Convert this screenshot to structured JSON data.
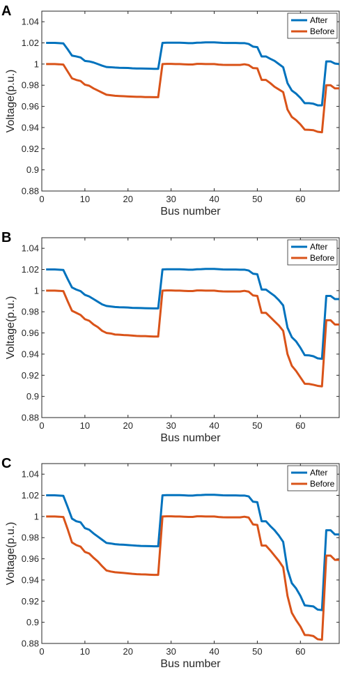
{
  "chart_data": [
    {
      "type": "line",
      "panel_label": "A",
      "xlabel": "Bus number",
      "ylabel": "Voltage(p.u.)",
      "xlim": [
        0,
        69
      ],
      "ylim": [
        0.88,
        1.05
      ],
      "xticks": [
        0,
        10,
        20,
        30,
        40,
        50,
        60
      ],
      "yticks": [
        0.88,
        0.9,
        0.92,
        0.94,
        0.96,
        0.98,
        1,
        1.02,
        1.04
      ],
      "legend_position": "top-right",
      "series": [
        {
          "name": "After",
          "color": "#0072BD",
          "x": [
            1,
            2,
            3,
            4,
            5,
            6,
            7,
            8,
            9,
            10,
            11,
            12,
            13,
            14,
            15,
            16,
            17,
            18,
            19,
            20,
            21,
            22,
            23,
            24,
            25,
            26,
            27,
            28,
            29,
            30,
            31,
            32,
            33,
            34,
            35,
            36,
            37,
            38,
            39,
            40,
            41,
            42,
            43,
            44,
            45,
            46,
            47,
            48,
            49,
            50,
            51,
            52,
            53,
            54,
            55,
            56,
            57,
            58,
            59,
            60,
            61,
            62,
            63,
            64,
            65,
            66,
            67,
            68,
            69
          ],
          "y": [
            1.02,
            1.02,
            1.02,
            1.0198,
            1.0195,
            1.014,
            1.008,
            1.0072,
            1.0062,
            1.003,
            1.0025,
            1.0015,
            1.0,
            0.9985,
            0.9972,
            0.997,
            0.9967,
            0.9965,
            0.9964,
            0.9963,
            0.996,
            0.9958,
            0.9958,
            0.9957,
            0.9956,
            0.9955,
            0.9955,
            1.02,
            1.0202,
            1.0202,
            1.0202,
            1.0202,
            1.02,
            1.0198,
            1.0198,
            1.0202,
            1.0203,
            1.0205,
            1.0205,
            1.0205,
            1.0203,
            1.02,
            1.0199,
            1.0199,
            1.0199,
            1.0198,
            1.0198,
            1.019,
            1.0165,
            1.016,
            1.0072,
            1.0072,
            1.005,
            1.003,
            1.0,
            0.997,
            0.982,
            0.975,
            0.972,
            0.968,
            0.963,
            0.963,
            0.9625,
            0.961,
            0.961,
            1.0025,
            1.0025,
            1.0005,
            1.0
          ]
        },
        {
          "name": "Before",
          "color": "#D95319",
          "x": [
            1,
            2,
            3,
            4,
            5,
            6,
            7,
            8,
            9,
            10,
            11,
            12,
            13,
            14,
            15,
            16,
            17,
            18,
            19,
            20,
            21,
            22,
            23,
            24,
            25,
            26,
            27,
            28,
            29,
            30,
            31,
            32,
            33,
            34,
            35,
            36,
            37,
            38,
            39,
            40,
            41,
            42,
            43,
            44,
            45,
            46,
            47,
            48,
            49,
            50,
            51,
            52,
            53,
            54,
            55,
            56,
            57,
            58,
            59,
            60,
            61,
            62,
            63,
            64,
            65,
            66,
            67,
            68,
            69
          ],
          "y": [
            1.0,
            1.0,
            1.0,
            0.9998,
            0.9995,
            0.993,
            0.9865,
            0.985,
            0.984,
            0.9805,
            0.9795,
            0.977,
            0.975,
            0.973,
            0.971,
            0.9705,
            0.97,
            0.9698,
            0.9696,
            0.9694,
            0.9692,
            0.969,
            0.969,
            0.9688,
            0.9688,
            0.9687,
            0.9687,
            1.0,
            1.0002,
            1.0002,
            1.0,
            1.0,
            0.9998,
            0.9996,
            0.9996,
            1.0002,
            1.0002,
            1.0,
            1.0,
            1.0,
            0.9995,
            0.9993,
            0.9992,
            0.9992,
            0.9992,
            0.9992,
            0.9998,
            0.999,
            0.9962,
            0.996,
            0.985,
            0.985,
            0.982,
            0.9785,
            0.976,
            0.9735,
            0.957,
            0.95,
            0.947,
            0.943,
            0.938,
            0.9378,
            0.9375,
            0.936,
            0.9355,
            0.98,
            0.98,
            0.977,
            0.977
          ]
        }
      ]
    },
    {
      "type": "line",
      "panel_label": "B",
      "xlabel": "Bus number",
      "ylabel": "Voltage(p.u.)",
      "xlim": [
        0,
        69
      ],
      "ylim": [
        0.88,
        1.05
      ],
      "xticks": [
        0,
        10,
        20,
        30,
        40,
        50,
        60
      ],
      "yticks": [
        0.88,
        0.9,
        0.92,
        0.94,
        0.96,
        0.98,
        1,
        1.02,
        1.04
      ],
      "legend_position": "top-right",
      "series": [
        {
          "name": "After",
          "color": "#0072BD",
          "x": [
            1,
            2,
            3,
            4,
            5,
            6,
            7,
            8,
            9,
            10,
            11,
            12,
            13,
            14,
            15,
            16,
            17,
            18,
            19,
            20,
            21,
            22,
            23,
            24,
            25,
            26,
            27,
            28,
            29,
            30,
            31,
            32,
            33,
            34,
            35,
            36,
            37,
            38,
            39,
            40,
            41,
            42,
            43,
            44,
            45,
            46,
            47,
            48,
            49,
            50,
            51,
            52,
            53,
            54,
            55,
            56,
            57,
            58,
            59,
            60,
            61,
            62,
            63,
            64,
            65,
            66,
            67,
            68,
            69
          ],
          "y": [
            1.02,
            1.02,
            1.02,
            1.0198,
            1.0195,
            1.011,
            1.003,
            1.001,
            0.9995,
            0.996,
            0.9945,
            0.992,
            0.9895,
            0.987,
            0.9855,
            0.985,
            0.9845,
            0.9843,
            0.9842,
            0.984,
            0.9837,
            0.9836,
            0.9835,
            0.9834,
            0.9833,
            0.9832,
            0.9832,
            1.02,
            1.0202,
            1.0202,
            1.0202,
            1.0202,
            1.02,
            1.0198,
            1.0198,
            1.0202,
            1.0203,
            1.0205,
            1.0205,
            1.0205,
            1.0203,
            1.02,
            1.0199,
            1.0199,
            1.0199,
            1.0198,
            1.0198,
            1.019,
            1.016,
            1.0155,
            1.001,
            1.001,
            0.998,
            0.995,
            0.991,
            0.986,
            0.965,
            0.956,
            0.952,
            0.946,
            0.939,
            0.9388,
            0.938,
            0.936,
            0.9355,
            0.995,
            0.995,
            0.992,
            0.992
          ]
        },
        {
          "name": "Before",
          "color": "#D95319",
          "x": [
            1,
            2,
            3,
            4,
            5,
            6,
            7,
            8,
            9,
            10,
            11,
            12,
            13,
            14,
            15,
            16,
            17,
            18,
            19,
            20,
            21,
            22,
            23,
            24,
            25,
            26,
            27,
            28,
            29,
            30,
            31,
            32,
            33,
            34,
            35,
            36,
            37,
            38,
            39,
            40,
            41,
            42,
            43,
            44,
            45,
            46,
            47,
            48,
            49,
            50,
            51,
            52,
            53,
            54,
            55,
            56,
            57,
            58,
            59,
            60,
            61,
            62,
            63,
            64,
            65,
            66,
            67,
            68,
            69
          ],
          "y": [
            1.0,
            1.0,
            1.0,
            0.9998,
            0.9995,
            0.99,
            0.981,
            0.979,
            0.977,
            0.973,
            0.9715,
            0.968,
            0.9655,
            0.962,
            0.96,
            0.9595,
            0.9585,
            0.9583,
            0.958,
            0.9578,
            0.9575,
            0.9572,
            0.957,
            0.957,
            0.9568,
            0.9566,
            0.9566,
            1.0,
            1.0002,
            1.0002,
            1.0,
            1.0,
            0.9998,
            0.9996,
            0.9996,
            1.0002,
            1.0002,
            1.0,
            1.0,
            1.0,
            0.9995,
            0.9993,
            0.9992,
            0.9992,
            0.9992,
            0.9992,
            0.9998,
            0.999,
            0.9955,
            0.995,
            0.979,
            0.979,
            0.975,
            0.971,
            0.967,
            0.962,
            0.94,
            0.929,
            0.924,
            0.918,
            0.912,
            0.9118,
            0.911,
            0.91,
            0.9095,
            0.972,
            0.972,
            0.968,
            0.968
          ]
        }
      ]
    },
    {
      "type": "line",
      "panel_label": "C",
      "xlabel": "Bus number",
      "ylabel": "Voltage(p.u.)",
      "xlim": [
        0,
        69
      ],
      "ylim": [
        0.88,
        1.05
      ],
      "xticks": [
        0,
        10,
        20,
        30,
        40,
        50,
        60
      ],
      "yticks": [
        0.88,
        0.9,
        0.92,
        0.94,
        0.96,
        0.98,
        1,
        1.02,
        1.04
      ],
      "legend_position": "top-right",
      "series": [
        {
          "name": "After",
          "color": "#0072BD",
          "x": [
            1,
            2,
            3,
            4,
            5,
            6,
            7,
            8,
            9,
            10,
            11,
            12,
            13,
            14,
            15,
            16,
            17,
            18,
            19,
            20,
            21,
            22,
            23,
            24,
            25,
            26,
            27,
            28,
            29,
            30,
            31,
            32,
            33,
            34,
            35,
            36,
            37,
            38,
            39,
            40,
            41,
            42,
            43,
            44,
            45,
            46,
            47,
            48,
            49,
            50,
            51,
            52,
            53,
            54,
            55,
            56,
            57,
            58,
            59,
            60,
            61,
            62,
            63,
            64,
            65,
            66,
            67,
            68,
            69
          ],
          "y": [
            1.02,
            1.02,
            1.02,
            1.0198,
            1.0195,
            1.009,
            0.998,
            0.9955,
            0.9945,
            0.989,
            0.9875,
            0.984,
            0.981,
            0.978,
            0.975,
            0.9745,
            0.9738,
            0.9735,
            0.9733,
            0.973,
            0.9727,
            0.9724,
            0.9722,
            0.9721,
            0.972,
            0.9718,
            0.9718,
            1.02,
            1.0202,
            1.0202,
            1.0202,
            1.0202,
            1.02,
            1.0198,
            1.0198,
            1.0202,
            1.0203,
            1.0205,
            1.0205,
            1.0205,
            1.0203,
            1.02,
            1.0199,
            1.0199,
            1.0199,
            1.0198,
            1.0198,
            1.019,
            1.014,
            1.0135,
            0.9955,
            0.9955,
            0.991,
            0.987,
            0.982,
            0.976,
            0.95,
            0.937,
            0.932,
            0.925,
            0.916,
            0.9155,
            0.915,
            0.912,
            0.9115,
            0.987,
            0.987,
            0.983,
            0.983
          ]
        },
        {
          "name": "Before",
          "color": "#D95319",
          "x": [
            1,
            2,
            3,
            4,
            5,
            6,
            7,
            8,
            9,
            10,
            11,
            12,
            13,
            14,
            15,
            16,
            17,
            18,
            19,
            20,
            21,
            22,
            23,
            24,
            25,
            26,
            27,
            28,
            29,
            30,
            31,
            32,
            33,
            34,
            35,
            36,
            37,
            38,
            39,
            40,
            41,
            42,
            43,
            44,
            45,
            46,
            47,
            48,
            49,
            50,
            51,
            52,
            53,
            54,
            55,
            56,
            57,
            58,
            59,
            60,
            61,
            62,
            63,
            64,
            65,
            66,
            67,
            68,
            69
          ],
          "y": [
            1.0,
            1.0,
            1.0,
            0.9998,
            0.9995,
            0.988,
            0.9755,
            0.973,
            0.9715,
            0.9665,
            0.965,
            0.961,
            0.9575,
            0.953,
            0.949,
            0.948,
            0.9473,
            0.947,
            0.9466,
            0.9462,
            0.9458,
            0.9455,
            0.9453,
            0.9452,
            0.945,
            0.9448,
            0.9448,
            1.0,
            1.0002,
            1.0002,
            1.0,
            1.0,
            0.9998,
            0.9996,
            0.9996,
            1.0002,
            1.0002,
            1.0,
            1.0,
            1.0,
            0.9995,
            0.9993,
            0.9992,
            0.9992,
            0.9992,
            0.9992,
            0.9998,
            0.999,
            0.9925,
            0.992,
            0.9725,
            0.9725,
            0.968,
            0.963,
            0.958,
            0.952,
            0.925,
            0.909,
            0.902,
            0.896,
            0.888,
            0.8878,
            0.887,
            0.884,
            0.8835,
            0.963,
            0.963,
            0.959,
            0.959
          ]
        }
      ]
    }
  ]
}
